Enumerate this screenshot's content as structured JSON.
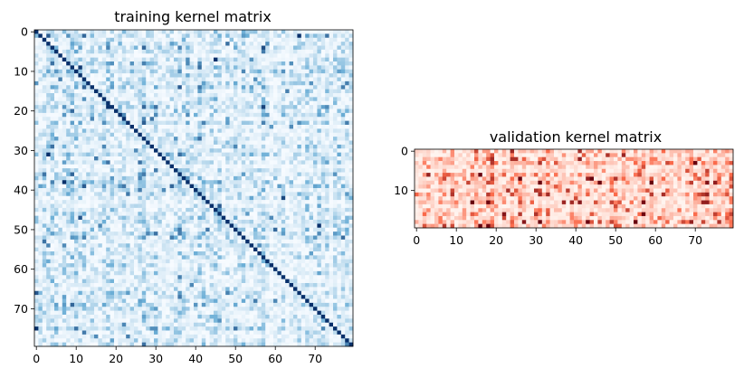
{
  "chart_data": [
    {
      "type": "heatmap",
      "title": "training kernel matrix",
      "colormap": "Blues",
      "rows": 80,
      "cols": 80,
      "diagonal": "maximum",
      "x_ticks": [
        0,
        10,
        20,
        30,
        40,
        50,
        60,
        70
      ],
      "y_ticks": [
        0,
        10,
        20,
        30,
        40,
        50,
        60,
        70
      ],
      "xlabel": "",
      "ylabel": "",
      "values_note": ""
    },
    {
      "type": "heatmap",
      "title": "validation kernel matrix",
      "colormap": "Reds",
      "rows": 20,
      "cols": 80,
      "x_ticks": [
        0,
        10,
        20,
        30,
        40,
        50,
        60,
        70
      ],
      "y_ticks": [
        0,
        10
      ],
      "xlabel": "",
      "ylabel": ""
    }
  ],
  "colors": {
    "blues_low": "#f7fbff",
    "blues_mid": "#6baed6",
    "blues_high": "#08306b",
    "reds_low": "#fff5f0",
    "reds_mid": "#fb6a4a",
    "reds_high": "#67000d",
    "axis": "#000000"
  }
}
